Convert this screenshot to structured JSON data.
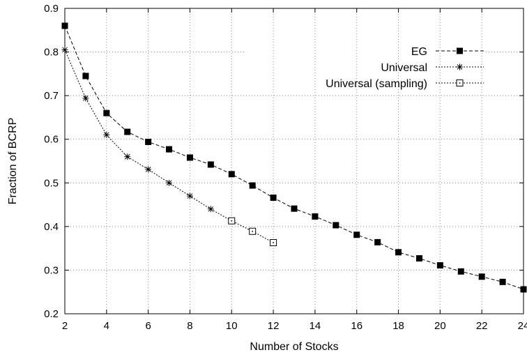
{
  "chart_data": {
    "type": "line",
    "xlabel": "Number of Stocks",
    "ylabel": "Fraction of BCRP",
    "xlim": [
      2,
      24
    ],
    "ylim": [
      0.2,
      0.9
    ],
    "x_ticks": [
      2,
      4,
      6,
      8,
      10,
      12,
      14,
      16,
      18,
      20,
      22,
      24
    ],
    "y_ticks": [
      0.2,
      0.3,
      0.4,
      0.5,
      0.6,
      0.7,
      0.8,
      0.9
    ],
    "x_tick_labels": [
      "2",
      "4",
      "6",
      "8",
      "10",
      "12",
      "14",
      "16",
      "18",
      "20",
      "22",
      "24"
    ],
    "y_tick_labels": [
      "0.2",
      "0.3",
      "0.4",
      "0.5",
      "0.6",
      "0.7",
      "0.8",
      "0.9"
    ],
    "grid": true,
    "legend_position": "top-right",
    "series": [
      {
        "name": "EG",
        "marker": "filled-square",
        "line_style": "dashed",
        "x": [
          2,
          3,
          4,
          5,
          6,
          7,
          8,
          9,
          10,
          11,
          12,
          13,
          14,
          15,
          16,
          17,
          18,
          19,
          20,
          21,
          22,
          23,
          24
        ],
        "y": [
          0.86,
          0.745,
          0.66,
          0.617,
          0.594,
          0.577,
          0.558,
          0.542,
          0.52,
          0.494,
          0.466,
          0.441,
          0.423,
          0.403,
          0.381,
          0.364,
          0.341,
          0.327,
          0.311,
          0.297,
          0.285,
          0.273,
          0.256
        ]
      },
      {
        "name": "Universal",
        "marker": "star",
        "line_style": "dotted",
        "x": [
          2,
          3,
          4,
          5,
          6,
          7,
          8,
          9
        ],
        "y": [
          0.805,
          0.694,
          0.61,
          0.56,
          0.531,
          0.5,
          0.47,
          0.44
        ]
      },
      {
        "name": "Universal (sampling)",
        "marker": "open-square",
        "line_style": "dotted",
        "connect_from_previous_series": true,
        "x": [
          10,
          11,
          12
        ],
        "y": [
          0.413,
          0.389,
          0.363
        ]
      }
    ]
  }
}
